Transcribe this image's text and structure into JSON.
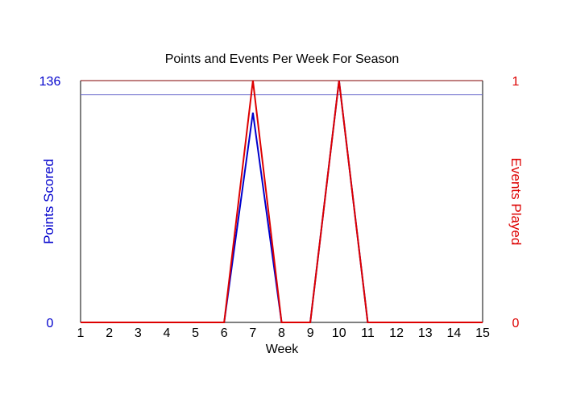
{
  "chart_data": {
    "type": "line",
    "title": "Points and Events Per Week For Season",
    "xlabel": "Week",
    "ylabel_left": "Points Scored",
    "ylabel_right": "Events Played",
    "x": [
      1,
      2,
      3,
      4,
      5,
      6,
      7,
      8,
      9,
      10,
      11,
      12,
      13,
      14,
      15
    ],
    "xlim": [
      1,
      15
    ],
    "ylim_left": [
      0,
      136
    ],
    "ylim_right": [
      0,
      1
    ],
    "left_ticks": [
      "0",
      "136"
    ],
    "right_ticks": [
      "0",
      "1"
    ],
    "reference_line_left": 128,
    "series": [
      {
        "name": "Points Scored",
        "axis": "left",
        "color": "#0000cc",
        "values": [
          0,
          0,
          0,
          0,
          0,
          0,
          118,
          0,
          0,
          136,
          0,
          0,
          0,
          0,
          0
        ]
      },
      {
        "name": "Events Played",
        "axis": "right",
        "color": "#dd0000",
        "values": [
          0,
          0,
          0,
          0,
          0,
          0,
          1,
          0,
          0,
          1,
          0,
          0,
          0,
          0,
          0
        ]
      }
    ],
    "grid": false,
    "legend": "none"
  },
  "colors": {
    "left_axis": "#0000cc",
    "right_axis": "#dd0000",
    "frame": "#000000",
    "frame_top": "#800000",
    "reference_line": "#6666cc"
  }
}
